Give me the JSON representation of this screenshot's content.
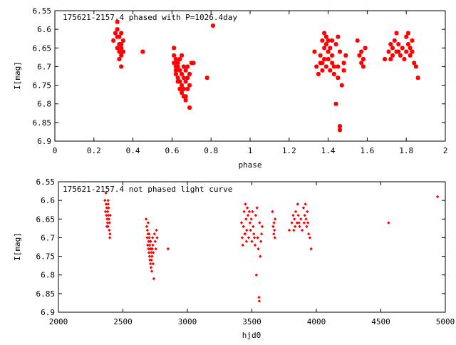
{
  "chart_data": [
    {
      "type": "scatter",
      "title": "175621-2157.4 phased with P=1026.4day",
      "xlabel": "phase",
      "ylabel": "I[mag]",
      "xlim": [
        0,
        2
      ],
      "ylim": [
        6.9,
        6.55
      ],
      "y_inverted": true,
      "grid": false,
      "marker_color": "#ff0000",
      "marker": "star",
      "x_ticks": [
        "0",
        "0.2",
        "0.4",
        "0.6",
        "0.8",
        "1",
        "1.2",
        "1.4",
        "1.6",
        "1.8",
        "2"
      ],
      "y_ticks": [
        "6.55",
        "6.6",
        "6.65",
        "6.7",
        "6.75",
        "6.8",
        "6.85",
        "6.9"
      ],
      "points": [
        [
          0.3,
          6.63
        ],
        [
          0.31,
          6.61
        ],
        [
          0.32,
          6.58
        ],
        [
          0.32,
          6.6
        ],
        [
          0.32,
          6.62
        ],
        [
          0.33,
          6.64
        ],
        [
          0.33,
          6.66
        ],
        [
          0.34,
          6.65
        ],
        [
          0.34,
          6.67
        ],
        [
          0.33,
          6.68
        ],
        [
          0.35,
          6.66
        ],
        [
          0.35,
          6.63
        ],
        [
          0.34,
          6.61
        ],
        [
          0.32,
          6.65
        ],
        [
          0.33,
          6.62
        ],
        [
          0.34,
          6.64
        ],
        [
          0.34,
          6.7
        ],
        [
          0.45,
          6.66
        ],
        [
          0.61,
          6.65
        ],
        [
          0.61,
          6.67
        ],
        [
          0.61,
          6.69
        ],
        [
          0.62,
          6.7
        ],
        [
          0.62,
          6.72
        ],
        [
          0.62,
          6.68
        ],
        [
          0.63,
          6.7
        ],
        [
          0.63,
          6.73
        ],
        [
          0.63,
          6.69
        ],
        [
          0.64,
          6.71
        ],
        [
          0.64,
          6.74
        ],
        [
          0.64,
          6.68
        ],
        [
          0.65,
          6.72
        ],
        [
          0.65,
          6.75
        ],
        [
          0.65,
          6.67
        ],
        [
          0.66,
          6.73
        ],
        [
          0.66,
          6.76
        ],
        [
          0.66,
          6.7
        ],
        [
          0.67,
          6.74
        ],
        [
          0.67,
          6.78
        ],
        [
          0.67,
          6.71
        ],
        [
          0.67,
          6.79
        ],
        [
          0.68,
          6.7
        ],
        [
          0.68,
          6.73
        ],
        [
          0.68,
          6.76
        ],
        [
          0.62,
          6.71
        ],
        [
          0.63,
          6.74
        ],
        [
          0.64,
          6.76
        ],
        [
          0.65,
          6.77
        ],
        [
          0.66,
          6.78
        ],
        [
          0.69,
          6.72
        ],
        [
          0.69,
          6.75
        ],
        [
          0.7,
          6.69
        ],
        [
          0.69,
          6.81
        ],
        [
          0.71,
          6.69
        ],
        [
          0.78,
          6.73
        ],
        [
          0.81,
          6.59
        ],
        [
          1.33,
          6.66
        ],
        [
          1.34,
          6.7
        ],
        [
          1.35,
          6.72
        ],
        [
          1.36,
          6.67
        ],
        [
          1.37,
          6.63
        ],
        [
          1.37,
          6.69
        ],
        [
          1.38,
          6.61
        ],
        [
          1.38,
          6.65
        ],
        [
          1.38,
          6.68
        ],
        [
          1.39,
          6.62
        ],
        [
          1.39,
          6.64
        ],
        [
          1.39,
          6.7
        ],
        [
          1.4,
          6.63
        ],
        [
          1.4,
          6.66
        ],
        [
          1.4,
          6.68
        ],
        [
          1.41,
          6.65
        ],
        [
          1.41,
          6.71
        ],
        [
          1.42,
          6.63
        ],
        [
          1.42,
          6.67
        ],
        [
          1.42,
          6.69
        ],
        [
          1.43,
          6.7
        ],
        [
          1.43,
          6.72
        ],
        [
          1.44,
          6.64
        ],
        [
          1.44,
          6.8
        ],
        [
          1.45,
          6.62
        ],
        [
          1.45,
          6.7
        ],
        [
          1.45,
          6.73
        ],
        [
          1.46,
          6.86
        ],
        [
          1.46,
          6.87
        ],
        [
          1.46,
          6.66
        ],
        [
          1.47,
          6.75
        ],
        [
          1.48,
          6.71
        ],
        [
          1.48,
          6.69
        ],
        [
          1.49,
          6.67
        ],
        [
          1.36,
          6.69
        ],
        [
          1.37,
          6.71
        ],
        [
          1.55,
          6.63
        ],
        [
          1.56,
          6.67
        ],
        [
          1.57,
          6.69
        ],
        [
          1.57,
          6.66
        ],
        [
          1.58,
          6.68
        ],
        [
          1.58,
          6.7
        ],
        [
          1.59,
          6.65
        ],
        [
          1.69,
          6.68
        ],
        [
          1.71,
          6.66
        ],
        [
          1.72,
          6.64
        ],
        [
          1.72,
          6.68
        ],
        [
          1.73,
          6.65
        ],
        [
          1.73,
          6.67
        ],
        [
          1.74,
          6.63
        ],
        [
          1.75,
          6.66
        ],
        [
          1.75,
          6.61
        ],
        [
          1.76,
          6.64
        ],
        [
          1.76,
          6.66
        ],
        [
          1.77,
          6.67
        ],
        [
          1.78,
          6.65
        ],
        [
          1.79,
          6.68
        ],
        [
          1.8,
          6.62
        ],
        [
          1.8,
          6.66
        ],
        [
          1.81,
          6.64
        ],
        [
          1.81,
          6.61
        ],
        [
          1.82,
          6.65
        ],
        [
          1.82,
          6.67
        ],
        [
          1.83,
          6.63
        ],
        [
          1.83,
          6.66
        ],
        [
          1.84,
          6.69
        ],
        [
          1.85,
          6.7
        ],
        [
          1.86,
          6.73
        ]
      ]
    },
    {
      "type": "scatter",
      "title": "175621-2157.4 not phased light curve",
      "xlabel": "hjd0",
      "ylabel": "I[mag]",
      "xlim": [
        2000,
        5000
      ],
      "ylim": [
        6.9,
        6.55
      ],
      "y_inverted": true,
      "grid": false,
      "marker_color": "#ff0000",
      "marker": "diamond",
      "x_ticks": [
        "2000",
        "2500",
        "3000",
        "3500",
        "4000",
        "4500",
        "5000"
      ],
      "y_ticks": [
        "6.55",
        "6.6",
        "6.65",
        "6.7",
        "6.75",
        "6.8",
        "6.85",
        "6.9"
      ],
      "points": [
        [
          2360,
          6.6
        ],
        [
          2365,
          6.63
        ],
        [
          2368,
          6.58
        ],
        [
          2370,
          6.61
        ],
        [
          2372,
          6.64
        ],
        [
          2375,
          6.62
        ],
        [
          2378,
          6.65
        ],
        [
          2380,
          6.66
        ],
        [
          2382,
          6.63
        ],
        [
          2384,
          6.67
        ],
        [
          2386,
          6.61
        ],
        [
          2388,
          6.64
        ],
        [
          2390,
          6.62
        ],
        [
          2392,
          6.65
        ],
        [
          2394,
          6.68
        ],
        [
          2396,
          6.66
        ],
        [
          2398,
          6.7
        ],
        [
          2400,
          6.69
        ],
        [
          2402,
          6.64
        ],
        [
          2376,
          6.67
        ],
        [
          2385,
          6.6
        ],
        [
          2680,
          6.65
        ],
        [
          2685,
          6.67
        ],
        [
          2688,
          6.7
        ],
        [
          2690,
          6.68
        ],
        [
          2692,
          6.72
        ],
        [
          2695,
          6.69
        ],
        [
          2698,
          6.73
        ],
        [
          2700,
          6.71
        ],
        [
          2702,
          6.74
        ],
        [
          2704,
          6.7
        ],
        [
          2706,
          6.75
        ],
        [
          2708,
          6.72
        ],
        [
          2710,
          6.76
        ],
        [
          2712,
          6.73
        ],
        [
          2714,
          6.77
        ],
        [
          2716,
          6.71
        ],
        [
          2718,
          6.78
        ],
        [
          2720,
          6.74
        ],
        [
          2722,
          6.76
        ],
        [
          2724,
          6.79
        ],
        [
          2726,
          6.75
        ],
        [
          2728,
          6.73
        ],
        [
          2730,
          6.7
        ],
        [
          2732,
          6.72
        ],
        [
          2734,
          6.77
        ],
        [
          2736,
          6.74
        ],
        [
          2740,
          6.81
        ],
        [
          2745,
          6.69
        ],
        [
          2750,
          6.71
        ],
        [
          2755,
          6.73
        ],
        [
          2760,
          6.68
        ],
        [
          2765,
          6.7
        ],
        [
          2696,
          6.66
        ],
        [
          2703,
          6.69
        ],
        [
          2711,
          6.71
        ],
        [
          2719,
          6.73
        ],
        [
          2850,
          6.73
        ],
        [
          3420,
          6.66
        ],
        [
          3425,
          6.7
        ],
        [
          3430,
          6.72
        ],
        [
          3435,
          6.67
        ],
        [
          3440,
          6.63
        ],
        [
          3445,
          6.69
        ],
        [
          3450,
          6.61
        ],
        [
          3455,
          6.65
        ],
        [
          3460,
          6.68
        ],
        [
          3465,
          6.62
        ],
        [
          3470,
          6.64
        ],
        [
          3475,
          6.7
        ],
        [
          3480,
          6.63
        ],
        [
          3485,
          6.66
        ],
        [
          3490,
          6.68
        ],
        [
          3495,
          6.65
        ],
        [
          3500,
          6.71
        ],
        [
          3505,
          6.63
        ],
        [
          3510,
          6.67
        ],
        [
          3515,
          6.69
        ],
        [
          3520,
          6.7
        ],
        [
          3525,
          6.72
        ],
        [
          3530,
          6.64
        ],
        [
          3535,
          6.8
        ],
        [
          3540,
          6.62
        ],
        [
          3545,
          6.7
        ],
        [
          3550,
          6.73
        ],
        [
          3555,
          6.86
        ],
        [
          3558,
          6.87
        ],
        [
          3560,
          6.66
        ],
        [
          3565,
          6.75
        ],
        [
          3570,
          6.71
        ],
        [
          3575,
          6.69
        ],
        [
          3580,
          6.67
        ],
        [
          3448,
          6.69
        ],
        [
          3458,
          6.71
        ],
        [
          3660,
          6.63
        ],
        [
          3665,
          6.67
        ],
        [
          3670,
          6.69
        ],
        [
          3672,
          6.66
        ],
        [
          3675,
          6.68
        ],
        [
          3678,
          6.7
        ],
        [
          3680,
          6.65
        ],
        [
          3790,
          6.68
        ],
        [
          3810,
          6.66
        ],
        [
          3820,
          6.64
        ],
        [
          3825,
          6.68
        ],
        [
          3830,
          6.65
        ],
        [
          3835,
          6.67
        ],
        [
          3840,
          6.63
        ],
        [
          3850,
          6.66
        ],
        [
          3855,
          6.61
        ],
        [
          3860,
          6.64
        ],
        [
          3865,
          6.66
        ],
        [
          3870,
          6.67
        ],
        [
          3880,
          6.65
        ],
        [
          3890,
          6.68
        ],
        [
          3900,
          6.62
        ],
        [
          3905,
          6.66
        ],
        [
          3910,
          6.64
        ],
        [
          3915,
          6.61
        ],
        [
          3920,
          6.65
        ],
        [
          3925,
          6.67
        ],
        [
          3930,
          6.63
        ],
        [
          3935,
          6.66
        ],
        [
          3940,
          6.69
        ],
        [
          3950,
          6.7
        ],
        [
          3960,
          6.73
        ],
        [
          4560,
          6.66
        ],
        [
          4940,
          6.59
        ]
      ]
    }
  ]
}
